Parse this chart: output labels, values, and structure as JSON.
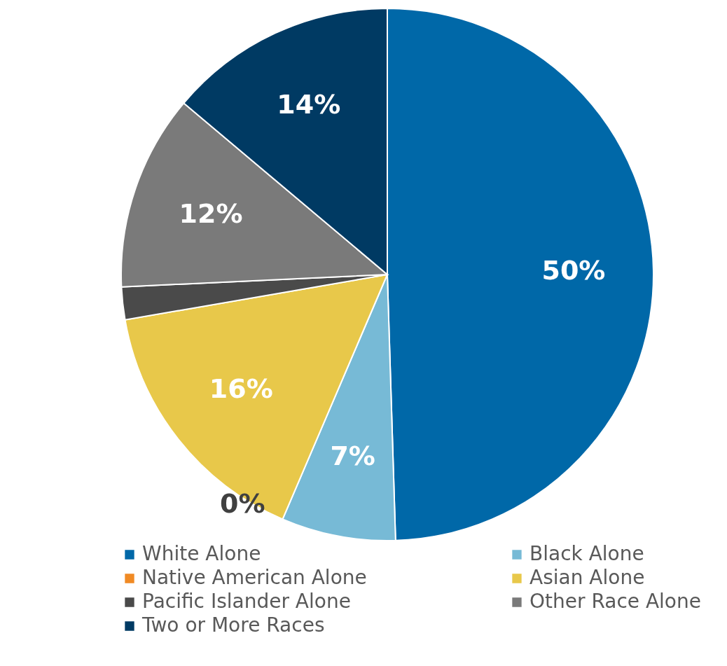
{
  "chart_data": {
    "type": "pie",
    "categories": [
      "White Alone",
      "Black Alone",
      "Native American Alone",
      "Asian Alone",
      "Pacific Islander Alone",
      "Other Race Alone",
      "Two or More Races"
    ],
    "values": [
      50,
      7,
      0,
      16,
      2,
      12,
      14
    ],
    "colors": [
      "#0068a8",
      "#77bad6",
      "#f08a24",
      "#e8c84a",
      "#4a4a4a",
      "#7a7a7a",
      "#003a63"
    ],
    "value_labels": [
      "50%",
      "7%",
      "0%",
      "16%",
      null,
      "12%",
      "14%"
    ],
    "legend": "bottom"
  }
}
